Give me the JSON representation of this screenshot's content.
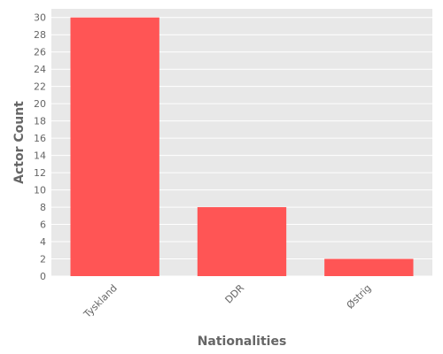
{
  "chart_data": {
    "type": "bar",
    "categories": [
      "Tyskland",
      "DDR",
      "Østrig"
    ],
    "values": [
      30,
      8,
      2
    ],
    "xlabel": "Nationalities",
    "ylabel": "Actor Count",
    "ylim": [
      0,
      31
    ],
    "yticks": [
      0,
      2,
      4,
      6,
      8,
      10,
      12,
      14,
      16,
      18,
      20,
      22,
      24,
      26,
      28,
      30
    ],
    "grid": true,
    "legend": "none",
    "bar_color": "#FF5555",
    "background_color": "#E8E8E8",
    "grid_color": "#FFFFFF"
  }
}
